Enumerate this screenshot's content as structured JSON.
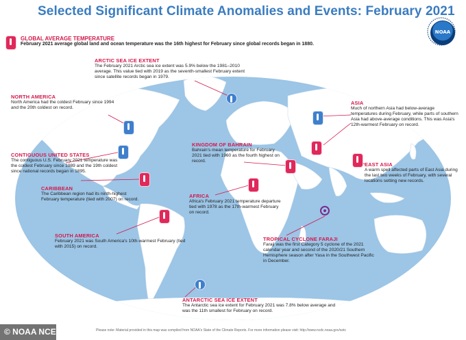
{
  "title": "Selected Significant Climate Anomalies and Events: February 2021",
  "logo_text": "NOAA",
  "global": {
    "heading": "GLOBAL AVERAGE TEMPERATURE",
    "text": "February 2021 average global land and ocean temperature was the 16th highest for February since global records began in 1880."
  },
  "annotations": {
    "arctic": {
      "heading": "ARCTIC SEA ICE EXTENT",
      "text": "The February 2021 Arctic sea ice extent was 5.9% below the 1981–2010 average. This value tied with 2019 as the seventh-smallest February extent since satellite records began in 1979."
    },
    "north_america": {
      "heading": "NORTH AMERICA",
      "text": "North America had the coldest February since 1994 and the 20th coldest on record."
    },
    "contiguous_us": {
      "heading": "CONTIGUOUS UNITED STATES",
      "text": "The contiguous U.S. February 2021 temperature was the coldest February since 1989 and the 19th coldest since national records began in 1895."
    },
    "caribbean": {
      "heading": "CARIBBEAN",
      "text": "The Caribbean region had its ninth-highest February temperature (tied with 2007) on record."
    },
    "south_america": {
      "heading": "SOUTH AMERICA",
      "text": "February 2021 was South America's 10th-warmest February (tied with 2015) on record."
    },
    "bahrain": {
      "heading": "KINGDOM OF BAHRAIN",
      "text": "Bahrain's mean temperature for February 2021 tied with 1960 as the fourth highest on record."
    },
    "africa": {
      "heading": "AFRICA",
      "text": "Africa's February 2021 temperature departure tied with 1978 as the 17th-warmest February on record."
    },
    "asia": {
      "heading": "ASIA",
      "text": "Much of northern Asia had below-average temperatures during February, while parts of southern Asia had above-average conditions. This was Asia's 12th-warmest February on record."
    },
    "east_asia": {
      "heading": "EAST ASIA",
      "text": "A warm spell affected parts of East Asia during the last two weeks of February, with several locations setting new records."
    },
    "faraji": {
      "heading": "TROPICAL CYCLONE FARAJI",
      "text": "Faraji was the first Category 5 cyclone of the 2021 calendar year and second of the 2020/21 Southern Hemisphere season after Yasa in the Southwest Pacific in December."
    },
    "antarctic": {
      "heading": "ANTARCTIC SEA ICE EXTENT",
      "text": "The Antarctic sea ice extent for February 2021 was 7.8% below average and was the 11th smallest for February on record."
    }
  },
  "footer_note": "Please note: Material provided in this map was compiled from NOAA's State of the Climate Reports. For more information please visit: http://www.ncdc.noaa.gov/sotc",
  "credit": "© NOAA NCEI",
  "colors": {
    "title": "#3a7cc0",
    "heading": "#d3174a",
    "ocean": "#9cc5e6",
    "land": "#ffffff",
    "warm_marker": "#e0285a",
    "cold_marker": "#3f7fcc",
    "leader_line": "#d3174a"
  },
  "markers": [
    {
      "name": "arctic",
      "kind": "cold-sea-ice-icon"
    },
    {
      "name": "north-america",
      "kind": "cold-thermometer-icon"
    },
    {
      "name": "contiguous-us",
      "kind": "cold-thermometer-icon"
    },
    {
      "name": "caribbean",
      "kind": "warm-thermometer-icon"
    },
    {
      "name": "south-america",
      "kind": "warm-thermometer-icon"
    },
    {
      "name": "bahrain",
      "kind": "warm-thermometer-icon"
    },
    {
      "name": "africa",
      "kind": "warm-thermometer-icon"
    },
    {
      "name": "asia-north",
      "kind": "cold-thermometer-icon"
    },
    {
      "name": "asia-south",
      "kind": "warm-thermometer-icon"
    },
    {
      "name": "east-asia",
      "kind": "warm-thermometer-icon"
    },
    {
      "name": "faraji",
      "kind": "cyclone-icon"
    },
    {
      "name": "antarctic",
      "kind": "warm-sea-ice-icon"
    }
  ]
}
